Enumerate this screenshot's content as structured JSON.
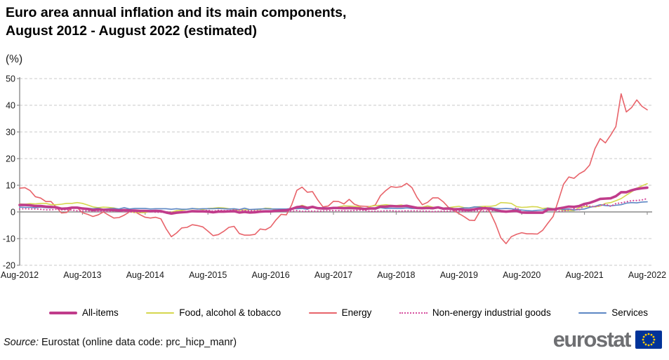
{
  "header": {
    "title_line1": "Euro area annual inflation and its main components,",
    "title_line2": "August 2012 - August 2022 (estimated)",
    "unit_label": "(%)"
  },
  "chart_data": {
    "type": "line",
    "title": "Euro area annual inflation and its main components, August 2012 - August 2022 (estimated)",
    "ylabel": "(%)",
    "x_interval": "monthly",
    "x_start": "Aug-2012",
    "x_end": "Aug-2022",
    "x_tick_labels": [
      "Aug-2012",
      "Aug-2013",
      "Aug-2014",
      "Aug-2015",
      "Aug-2016",
      "Aug-2017",
      "Aug-2018",
      "Aug-2019",
      "Aug-2020",
      "Aug-2021",
      "Aug-2022"
    ],
    "ylim": [
      -20,
      50
    ],
    "y_ticks": [
      50,
      40,
      30,
      20,
      10,
      0,
      -10,
      -20
    ],
    "grid": "dashed horizontal gridlines, solid zero axis with year ticks",
    "legend_position": "bottom",
    "colors": {
      "grid": "#c9c9c9",
      "axis": "#8c8c8c",
      "tick_text": "#1a1a1a"
    },
    "series": [
      {
        "name": "All-items",
        "color": "#c03c8b",
        "style": "solid",
        "width": 3.6,
        "values": [
          2.6,
          2.6,
          2.5,
          2.2,
          2.2,
          2.0,
          1.9,
          1.7,
          1.2,
          1.3,
          1.6,
          1.6,
          1.3,
          1.1,
          0.7,
          0.9,
          0.8,
          0.8,
          0.7,
          0.5,
          0.7,
          0.5,
          0.5,
          0.4,
          0.4,
          0.3,
          0.4,
          0.3,
          -0.2,
          -0.6,
          -0.3,
          -0.1,
          0.0,
          0.3,
          0.2,
          0.2,
          0.1,
          -0.1,
          0.1,
          0.1,
          0.2,
          0.3,
          -0.2,
          0.0,
          -0.2,
          -0.1,
          0.1,
          0.2,
          0.2,
          0.4,
          0.5,
          0.6,
          1.1,
          1.8,
          2.0,
          1.5,
          1.9,
          1.4,
          1.3,
          1.3,
          1.5,
          1.5,
          1.4,
          1.5,
          1.4,
          1.3,
          1.1,
          1.3,
          1.3,
          2.0,
          2.0,
          2.2,
          2.1,
          2.1,
          2.3,
          1.9,
          1.5,
          1.4,
          1.5,
          1.4,
          1.7,
          1.2,
          1.3,
          1.0,
          1.0,
          0.8,
          0.7,
          1.0,
          1.3,
          1.4,
          1.2,
          0.7,
          0.3,
          0.1,
          0.3,
          0.4,
          -0.2,
          -0.3,
          -0.3,
          -0.3,
          -0.3,
          0.9,
          0.9,
          1.3,
          1.6,
          2.0,
          1.9,
          2.2,
          3.0,
          3.4,
          4.1,
          4.9,
          5.0,
          5.1,
          5.9,
          7.4,
          7.4,
          8.1,
          8.6,
          8.9,
          9.1
        ]
      },
      {
        "name": "Food, alcohol & tobacco",
        "color": "#d5d74f",
        "style": "solid",
        "width": 1.6,
        "values": [
          3.0,
          2.9,
          3.1,
          3.0,
          3.2,
          3.2,
          2.7,
          2.7,
          2.9,
          3.2,
          3.2,
          3.5,
          3.2,
          2.6,
          1.9,
          1.6,
          1.8,
          1.7,
          1.5,
          1.0,
          0.7,
          0.1,
          -0.2,
          -0.3,
          -0.3,
          0.3,
          0.5,
          0.5,
          0.0,
          -0.1,
          0.5,
          0.6,
          1.0,
          1.2,
          1.2,
          0.9,
          1.3,
          1.4,
          1.6,
          1.5,
          1.2,
          1.0,
          0.6,
          0.8,
          0.8,
          0.9,
          0.9,
          1.4,
          1.3,
          0.7,
          0.4,
          0.7,
          1.2,
          1.8,
          2.5,
          1.8,
          1.5,
          1.5,
          1.4,
          1.4,
          1.4,
          1.9,
          2.3,
          2.2,
          2.1,
          1.9,
          1.0,
          2.1,
          2.4,
          2.5,
          2.7,
          2.5,
          2.4,
          2.6,
          2.2,
          1.9,
          1.8,
          1.8,
          2.3,
          1.8,
          1.5,
          1.5,
          1.6,
          1.9,
          2.1,
          1.6,
          1.5,
          1.9,
          2.0,
          2.1,
          2.1,
          2.4,
          3.5,
          3.4,
          3.2,
          2.0,
          1.7,
          1.8,
          2.0,
          1.9,
          1.3,
          1.5,
          1.3,
          1.1,
          0.6,
          0.5,
          0.5,
          1.6,
          2.0,
          2.0,
          1.9,
          2.2,
          3.2,
          3.5,
          4.2,
          5.0,
          6.3,
          7.5,
          8.9,
          9.8,
          10.6
        ]
      },
      {
        "name": "Energy",
        "color": "#e8636a",
        "style": "solid",
        "width": 1.6,
        "values": [
          8.9,
          9.1,
          8.0,
          5.7,
          5.2,
          3.9,
          3.9,
          1.7,
          -0.4,
          -0.2,
          1.6,
          1.6,
          -0.3,
          -0.9,
          -1.7,
          -1.1,
          0.0,
          -1.2,
          -2.3,
          -2.1,
          -1.2,
          0.0,
          0.1,
          -1.0,
          -2.0,
          -2.3,
          -2.0,
          -2.6,
          -6.3,
          -9.3,
          -7.9,
          -6.0,
          -5.8,
          -4.8,
          -5.1,
          -5.6,
          -7.2,
          -8.9,
          -8.5,
          -7.3,
          -5.8,
          -5.4,
          -8.1,
          -8.7,
          -8.7,
          -8.4,
          -6.4,
          -6.7,
          -5.6,
          -3.0,
          -0.9,
          -1.1,
          2.6,
          8.1,
          9.3,
          7.4,
          7.6,
          4.5,
          1.9,
          2.2,
          4.0,
          3.9,
          3.0,
          4.7,
          2.9,
          2.2,
          2.1,
          2.0,
          2.6,
          6.1,
          8.0,
          9.5,
          9.2,
          9.5,
          10.7,
          9.1,
          5.4,
          2.7,
          3.6,
          5.3,
          5.3,
          3.8,
          1.7,
          0.5,
          -0.6,
          -1.8,
          -3.1,
          -3.2,
          0.2,
          1.9,
          -0.3,
          -4.5,
          -9.7,
          -11.9,
          -9.3,
          -8.4,
          -7.8,
          -8.2,
          -8.2,
          -8.3,
          -6.9,
          -4.2,
          -1.7,
          4.3,
          10.4,
          13.1,
          12.6,
          14.3,
          15.4,
          17.6,
          23.7,
          27.5,
          25.9,
          28.8,
          32.0,
          44.3,
          37.5,
          39.1,
          42.0,
          39.6,
          38.3
        ]
      },
      {
        "name": "Non-energy industrial goods",
        "color": "#d64f9e",
        "style": "dotted",
        "width": 2.2,
        "values": [
          1.1,
          1.2,
          1.1,
          1.1,
          1.0,
          0.8,
          0.8,
          1.0,
          0.8,
          0.8,
          0.7,
          0.4,
          0.4,
          0.4,
          0.3,
          0.2,
          0.3,
          0.2,
          0.4,
          0.2,
          0.1,
          0.0,
          -0.1,
          0.0,
          0.3,
          0.2,
          -0.1,
          -0.1,
          0.0,
          -0.1,
          -0.1,
          0.0,
          0.1,
          0.2,
          0.4,
          0.4,
          0.6,
          0.3,
          0.6,
          0.5,
          0.5,
          0.7,
          0.7,
          0.5,
          0.5,
          0.5,
          0.4,
          0.4,
          0.3,
          0.3,
          0.3,
          0.3,
          0.3,
          0.5,
          0.2,
          0.3,
          0.3,
          0.3,
          0.4,
          0.5,
          0.5,
          0.5,
          0.4,
          0.4,
          0.5,
          0.6,
          0.6,
          0.2,
          0.3,
          0.3,
          0.4,
          0.5,
          0.3,
          0.3,
          0.4,
          0.4,
          0.4,
          0.3,
          0.3,
          0.1,
          0.2,
          0.3,
          0.3,
          0.4,
          0.3,
          0.2,
          0.3,
          0.4,
          0.5,
          0.3,
          0.5,
          0.5,
          0.3,
          0.2,
          0.2,
          1.6,
          -0.1,
          -0.3,
          -0.1,
          -0.3,
          -0.5,
          1.5,
          1.0,
          0.3,
          0.4,
          0.7,
          1.2,
          0.7,
          2.6,
          2.1,
          2.0,
          2.4,
          2.9,
          2.1,
          3.1,
          3.4,
          3.8,
          4.2,
          4.3,
          4.5,
          5.0
        ]
      },
      {
        "name": "Services",
        "color": "#5d87c4",
        "style": "solid",
        "width": 1.6,
        "values": [
          1.8,
          1.7,
          1.7,
          1.6,
          1.8,
          1.6,
          1.5,
          1.8,
          1.1,
          1.5,
          1.4,
          1.4,
          1.4,
          1.4,
          1.2,
          1.4,
          1.0,
          1.2,
          1.3,
          1.1,
          1.6,
          1.1,
          1.3,
          1.3,
          1.3,
          1.1,
          1.2,
          1.2,
          1.2,
          1.0,
          1.2,
          1.0,
          1.0,
          1.3,
          1.1,
          1.2,
          1.2,
          1.2,
          1.3,
          1.2,
          1.1,
          1.2,
          0.9,
          1.4,
          0.9,
          1.0,
          1.1,
          1.2,
          1.1,
          1.1,
          1.1,
          1.1,
          1.3,
          1.2,
          1.3,
          1.0,
          1.8,
          1.3,
          1.6,
          1.5,
          1.6,
          1.5,
          1.2,
          1.2,
          1.2,
          1.2,
          1.3,
          1.5,
          1.0,
          1.6,
          1.3,
          1.4,
          1.3,
          1.3,
          1.5,
          1.3,
          1.3,
          1.6,
          1.4,
          1.1,
          1.9,
          1.0,
          1.6,
          1.2,
          1.3,
          1.5,
          1.5,
          1.9,
          1.8,
          1.5,
          1.6,
          1.3,
          1.2,
          1.3,
          1.2,
          0.9,
          0.7,
          0.5,
          0.4,
          0.6,
          0.7,
          1.4,
          1.2,
          1.3,
          0.9,
          1.1,
          0.7,
          0.9,
          1.1,
          1.7,
          2.1,
          2.7,
          2.4,
          2.3,
          2.5,
          2.7,
          3.3,
          3.5,
          3.4,
          3.7,
          3.8
        ]
      }
    ]
  },
  "legend": {
    "items": [
      {
        "label": "All-items"
      },
      {
        "label": "Food, alcohol & tobacco"
      },
      {
        "label": "Energy"
      },
      {
        "label": "Non-energy industrial goods"
      },
      {
        "label": "Services"
      }
    ]
  },
  "footer": {
    "source_prefix": "Source:",
    "source_text": " Eurostat (online data code: prc_hicp_manr)",
    "logo_text": "eurostat"
  },
  "logo_colors": {
    "text": "#6e6f72",
    "flag_bg": "#003399",
    "stars": "#ffcc00"
  }
}
